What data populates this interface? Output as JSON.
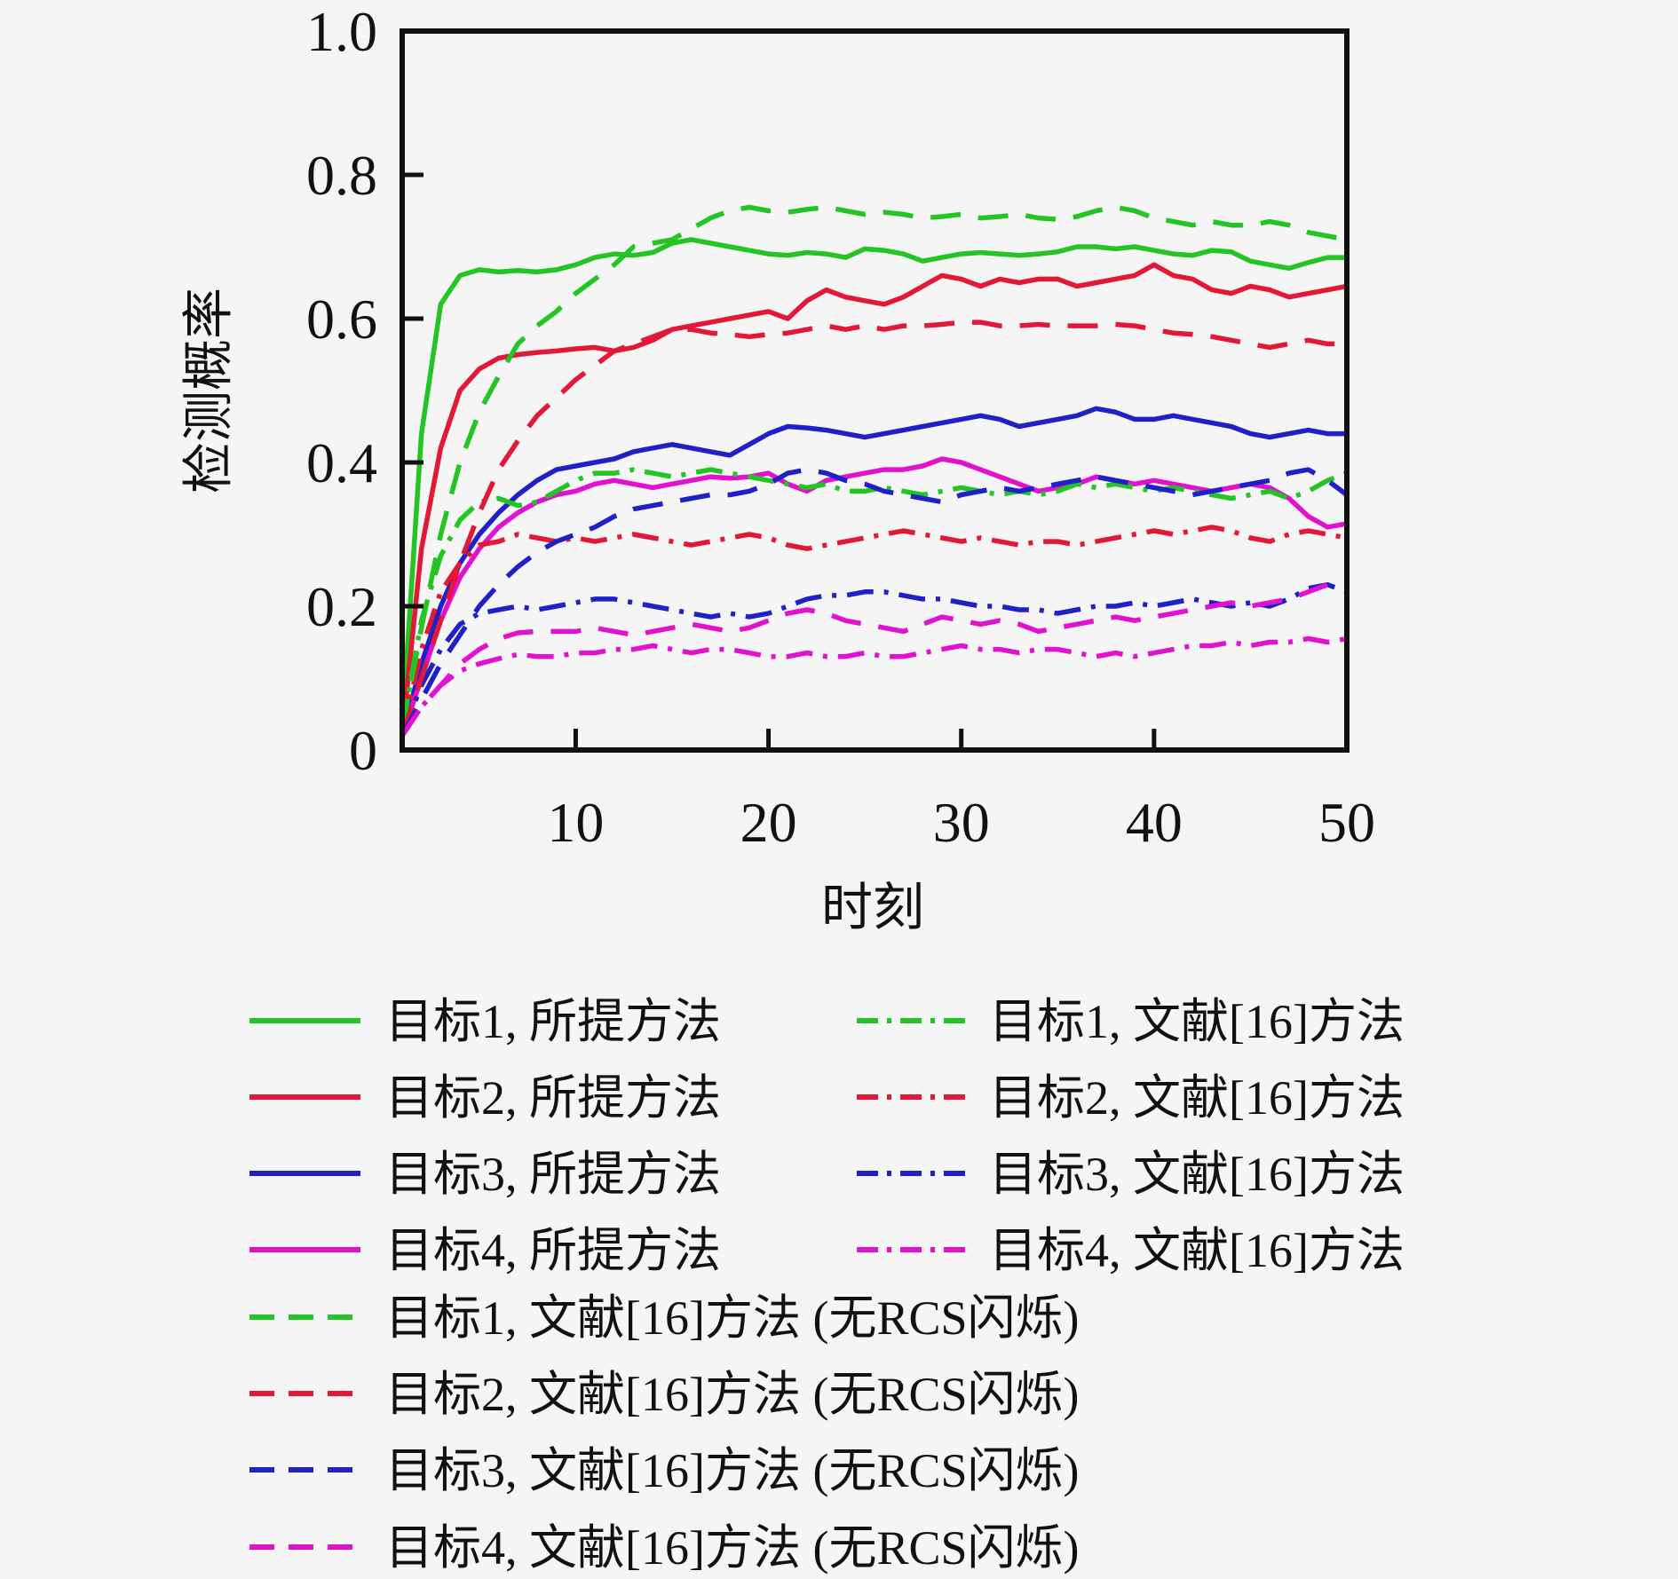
{
  "chart_data": {
    "type": "line",
    "title": "",
    "xlabel": "时刻",
    "ylabel": "检测概率",
    "xlim": [
      1,
      50
    ],
    "ylim": [
      0,
      1
    ],
    "grid": false,
    "legend_position": "below",
    "xticks": [
      10,
      20,
      30,
      40,
      50
    ],
    "xtick_labels": [
      "10",
      "20",
      "30",
      "40",
      "50"
    ],
    "yticks": [
      0,
      0.2,
      0.4,
      0.6,
      0.8,
      1.0
    ],
    "ytick_labels": [
      "0",
      "0.2",
      "0.4",
      "0.6",
      "0.8",
      "1.0"
    ],
    "colors": {
      "background": "#f5f5f5",
      "axis": "#111111",
      "green": "#22c522",
      "red": "#e31837",
      "blue": "#2020c8",
      "magenta": "#e211cf"
    },
    "x": [
      1,
      2,
      3,
      4,
      5,
      6,
      7,
      8,
      9,
      10,
      11,
      12,
      13,
      14,
      15,
      16,
      17,
      18,
      19,
      20,
      21,
      22,
      23,
      24,
      25,
      26,
      27,
      28,
      29,
      30,
      31,
      32,
      33,
      34,
      35,
      36,
      37,
      38,
      39,
      40,
      41,
      42,
      43,
      44,
      45,
      46,
      47,
      48,
      49,
      50
    ],
    "series": [
      {
        "id": "target1-proposed",
        "name": "目标1, 所提方法",
        "color": "#22c522",
        "style": "solid",
        "values": [
          0.03,
          0.44,
          0.62,
          0.66,
          0.668,
          0.665,
          0.667,
          0.665,
          0.668,
          0.675,
          0.685,
          0.69,
          0.688,
          0.692,
          0.705,
          0.71,
          0.705,
          0.7,
          0.695,
          0.69,
          0.688,
          0.692,
          0.69,
          0.685,
          0.697,
          0.695,
          0.69,
          0.68,
          0.685,
          0.69,
          0.692,
          0.69,
          0.688,
          0.69,
          0.693,
          0.7,
          0.7,
          0.697,
          0.7,
          0.695,
          0.69,
          0.688,
          0.695,
          0.693,
          0.68,
          0.675,
          0.67,
          0.678,
          0.685,
          0.685
        ]
      },
      {
        "id": "target2-proposed",
        "name": "目标2, 所提方法",
        "color": "#e31837",
        "style": "solid",
        "values": [
          0.02,
          0.28,
          0.42,
          0.5,
          0.53,
          0.545,
          0.55,
          0.553,
          0.555,
          0.558,
          0.56,
          0.555,
          0.56,
          0.57,
          0.585,
          0.59,
          0.595,
          0.6,
          0.605,
          0.61,
          0.6,
          0.625,
          0.64,
          0.63,
          0.625,
          0.62,
          0.63,
          0.645,
          0.66,
          0.655,
          0.645,
          0.655,
          0.65,
          0.655,
          0.655,
          0.645,
          0.65,
          0.655,
          0.66,
          0.675,
          0.66,
          0.655,
          0.64,
          0.635,
          0.645,
          0.64,
          0.63,
          0.635,
          0.64,
          0.645
        ]
      },
      {
        "id": "target3-proposed",
        "name": "目标3, 所提方法",
        "color": "#2020c8",
        "style": "solid",
        "values": [
          0.02,
          0.12,
          0.2,
          0.26,
          0.3,
          0.33,
          0.355,
          0.375,
          0.39,
          0.395,
          0.4,
          0.405,
          0.415,
          0.42,
          0.425,
          0.42,
          0.415,
          0.41,
          0.425,
          0.44,
          0.45,
          0.448,
          0.445,
          0.44,
          0.435,
          0.44,
          0.445,
          0.45,
          0.455,
          0.46,
          0.465,
          0.46,
          0.45,
          0.455,
          0.46,
          0.465,
          0.475,
          0.47,
          0.46,
          0.46,
          0.465,
          0.46,
          0.455,
          0.45,
          0.44,
          0.435,
          0.44,
          0.445,
          0.44,
          0.44
        ]
      },
      {
        "id": "target4-proposed",
        "name": "目标4, 所提方法",
        "color": "#e211cf",
        "style": "solid",
        "values": [
          0.02,
          0.1,
          0.18,
          0.24,
          0.28,
          0.31,
          0.33,
          0.345,
          0.355,
          0.36,
          0.37,
          0.375,
          0.37,
          0.365,
          0.37,
          0.375,
          0.38,
          0.378,
          0.38,
          0.385,
          0.37,
          0.36,
          0.375,
          0.38,
          0.385,
          0.39,
          0.39,
          0.395,
          0.405,
          0.4,
          0.39,
          0.38,
          0.37,
          0.36,
          0.365,
          0.37,
          0.38,
          0.375,
          0.37,
          0.375,
          0.37,
          0.365,
          0.36,
          0.365,
          0.37,
          0.365,
          0.35,
          0.325,
          0.31,
          0.315
        ]
      },
      {
        "id": "target1-ref16",
        "name": "目标1, 文献[16]方法",
        "color": "#22c522",
        "style": "dashdot",
        "values": [
          0.03,
          0.18,
          0.27,
          0.32,
          0.345,
          0.35,
          0.34,
          0.345,
          0.36,
          0.375,
          0.385,
          0.385,
          0.39,
          0.385,
          0.38,
          0.385,
          0.39,
          0.385,
          0.38,
          0.375,
          0.37,
          0.365,
          0.37,
          0.36,
          0.36,
          0.365,
          0.36,
          0.355,
          0.36,
          0.365,
          0.36,
          0.355,
          0.36,
          0.355,
          0.36,
          0.37,
          0.365,
          0.37,
          0.365,
          0.36,
          0.365,
          0.36,
          0.355,
          0.35,
          0.355,
          0.36,
          0.35,
          0.36,
          0.375,
          0.385
        ]
      },
      {
        "id": "target2-ref16",
        "name": "目标2, 文献[16]方法",
        "color": "#e31837",
        "style": "dashdot",
        "values": [
          0.02,
          0.14,
          0.22,
          0.26,
          0.285,
          0.29,
          0.3,
          0.295,
          0.29,
          0.295,
          0.29,
          0.295,
          0.3,
          0.295,
          0.29,
          0.285,
          0.29,
          0.295,
          0.3,
          0.295,
          0.285,
          0.28,
          0.285,
          0.29,
          0.295,
          0.3,
          0.305,
          0.3,
          0.295,
          0.29,
          0.295,
          0.29,
          0.285,
          0.29,
          0.29,
          0.285,
          0.29,
          0.295,
          0.3,
          0.305,
          0.3,
          0.305,
          0.31,
          0.305,
          0.295,
          0.29,
          0.3,
          0.305,
          0.3,
          0.295
        ]
      },
      {
        "id": "target3-ref16",
        "name": "目标3, 文献[16]方法",
        "color": "#2020c8",
        "style": "dashdot",
        "values": [
          0.02,
          0.09,
          0.14,
          0.175,
          0.19,
          0.195,
          0.2,
          0.195,
          0.2,
          0.205,
          0.21,
          0.21,
          0.205,
          0.2,
          0.195,
          0.19,
          0.185,
          0.19,
          0.185,
          0.19,
          0.2,
          0.21,
          0.215,
          0.215,
          0.22,
          0.22,
          0.215,
          0.21,
          0.21,
          0.205,
          0.2,
          0.2,
          0.195,
          0.195,
          0.19,
          0.195,
          0.2,
          0.2,
          0.205,
          0.2,
          0.205,
          0.21,
          0.205,
          0.2,
          0.205,
          0.2,
          0.21,
          0.225,
          0.23,
          0.22
        ]
      },
      {
        "id": "target4-ref16",
        "name": "目标4, 文献[16]方法",
        "color": "#e211cf",
        "style": "dashdot",
        "values": [
          0.02,
          0.06,
          0.09,
          0.11,
          0.12,
          0.127,
          0.133,
          0.13,
          0.13,
          0.135,
          0.135,
          0.14,
          0.14,
          0.145,
          0.14,
          0.135,
          0.14,
          0.14,
          0.135,
          0.13,
          0.13,
          0.135,
          0.13,
          0.13,
          0.135,
          0.13,
          0.13,
          0.135,
          0.14,
          0.145,
          0.14,
          0.14,
          0.135,
          0.14,
          0.14,
          0.135,
          0.13,
          0.135,
          0.13,
          0.135,
          0.14,
          0.145,
          0.145,
          0.15,
          0.145,
          0.15,
          0.15,
          0.155,
          0.15,
          0.155
        ]
      },
      {
        "id": "target1-ref16-norcs",
        "name": "目标1, 文献[16]方法 (无RCS闪烁)",
        "color": "#22c522",
        "style": "dashed",
        "values": [
          0.03,
          0.17,
          0.3,
          0.4,
          0.47,
          0.52,
          0.565,
          0.59,
          0.61,
          0.635,
          0.655,
          0.675,
          0.7,
          0.705,
          0.71,
          0.725,
          0.74,
          0.75,
          0.755,
          0.75,
          0.748,
          0.752,
          0.755,
          0.75,
          0.745,
          0.748,
          0.745,
          0.74,
          0.742,
          0.745,
          0.74,
          0.742,
          0.745,
          0.74,
          0.738,
          0.742,
          0.75,
          0.755,
          0.75,
          0.74,
          0.735,
          0.73,
          0.735,
          0.73,
          0.73,
          0.735,
          0.73,
          0.72,
          0.715,
          0.71
        ]
      },
      {
        "id": "target2-ref16-norcs",
        "name": "目标2, 文献[16]方法 (无RCS闪烁)",
        "color": "#e31837",
        "style": "dashed",
        "values": [
          0.02,
          0.1,
          0.18,
          0.26,
          0.33,
          0.39,
          0.43,
          0.465,
          0.49,
          0.515,
          0.535,
          0.555,
          0.565,
          0.575,
          0.585,
          0.585,
          0.58,
          0.578,
          0.575,
          0.578,
          0.58,
          0.585,
          0.59,
          0.585,
          0.59,
          0.585,
          0.59,
          0.59,
          0.592,
          0.595,
          0.595,
          0.59,
          0.59,
          0.592,
          0.59,
          0.59,
          0.59,
          0.592,
          0.59,
          0.585,
          0.58,
          0.578,
          0.575,
          0.57,
          0.565,
          0.56,
          0.565,
          0.57,
          0.565,
          0.565
        ]
      },
      {
        "id": "target3-ref16-norcs",
        "name": "目标3, 文献[16]方法 (无RCS闪烁)",
        "color": "#2020c8",
        "style": "dashed",
        "values": [
          0.02,
          0.07,
          0.12,
          0.16,
          0.2,
          0.23,
          0.255,
          0.275,
          0.29,
          0.3,
          0.31,
          0.325,
          0.335,
          0.34,
          0.345,
          0.35,
          0.355,
          0.355,
          0.36,
          0.37,
          0.385,
          0.39,
          0.385,
          0.375,
          0.37,
          0.36,
          0.355,
          0.35,
          0.345,
          0.355,
          0.36,
          0.365,
          0.36,
          0.365,
          0.37,
          0.375,
          0.38,
          0.375,
          0.37,
          0.365,
          0.36,
          0.355,
          0.36,
          0.365,
          0.37,
          0.375,
          0.385,
          0.39,
          0.375,
          0.355
        ]
      },
      {
        "id": "target4-ref16-norcs",
        "name": "目标4, 文献[16]方法 (无RCS闪烁)",
        "color": "#e211cf",
        "style": "dashed",
        "values": [
          0.02,
          0.06,
          0.09,
          0.12,
          0.14,
          0.155,
          0.163,
          0.165,
          0.165,
          0.165,
          0.17,
          0.165,
          0.16,
          0.165,
          0.17,
          0.175,
          0.17,
          0.165,
          0.17,
          0.18,
          0.19,
          0.195,
          0.19,
          0.18,
          0.175,
          0.17,
          0.165,
          0.175,
          0.185,
          0.18,
          0.175,
          0.18,
          0.175,
          0.165,
          0.17,
          0.175,
          0.18,
          0.185,
          0.18,
          0.185,
          0.19,
          0.195,
          0.2,
          0.205,
          0.2,
          0.205,
          0.21,
          0.22,
          0.23,
          0.225
        ]
      }
    ],
    "legend": {
      "two_column_rows": [
        [
          0,
          4
        ],
        [
          1,
          5
        ],
        [
          2,
          6
        ],
        [
          3,
          7
        ]
      ],
      "full_rows": [
        8,
        9,
        10,
        11
      ]
    }
  }
}
